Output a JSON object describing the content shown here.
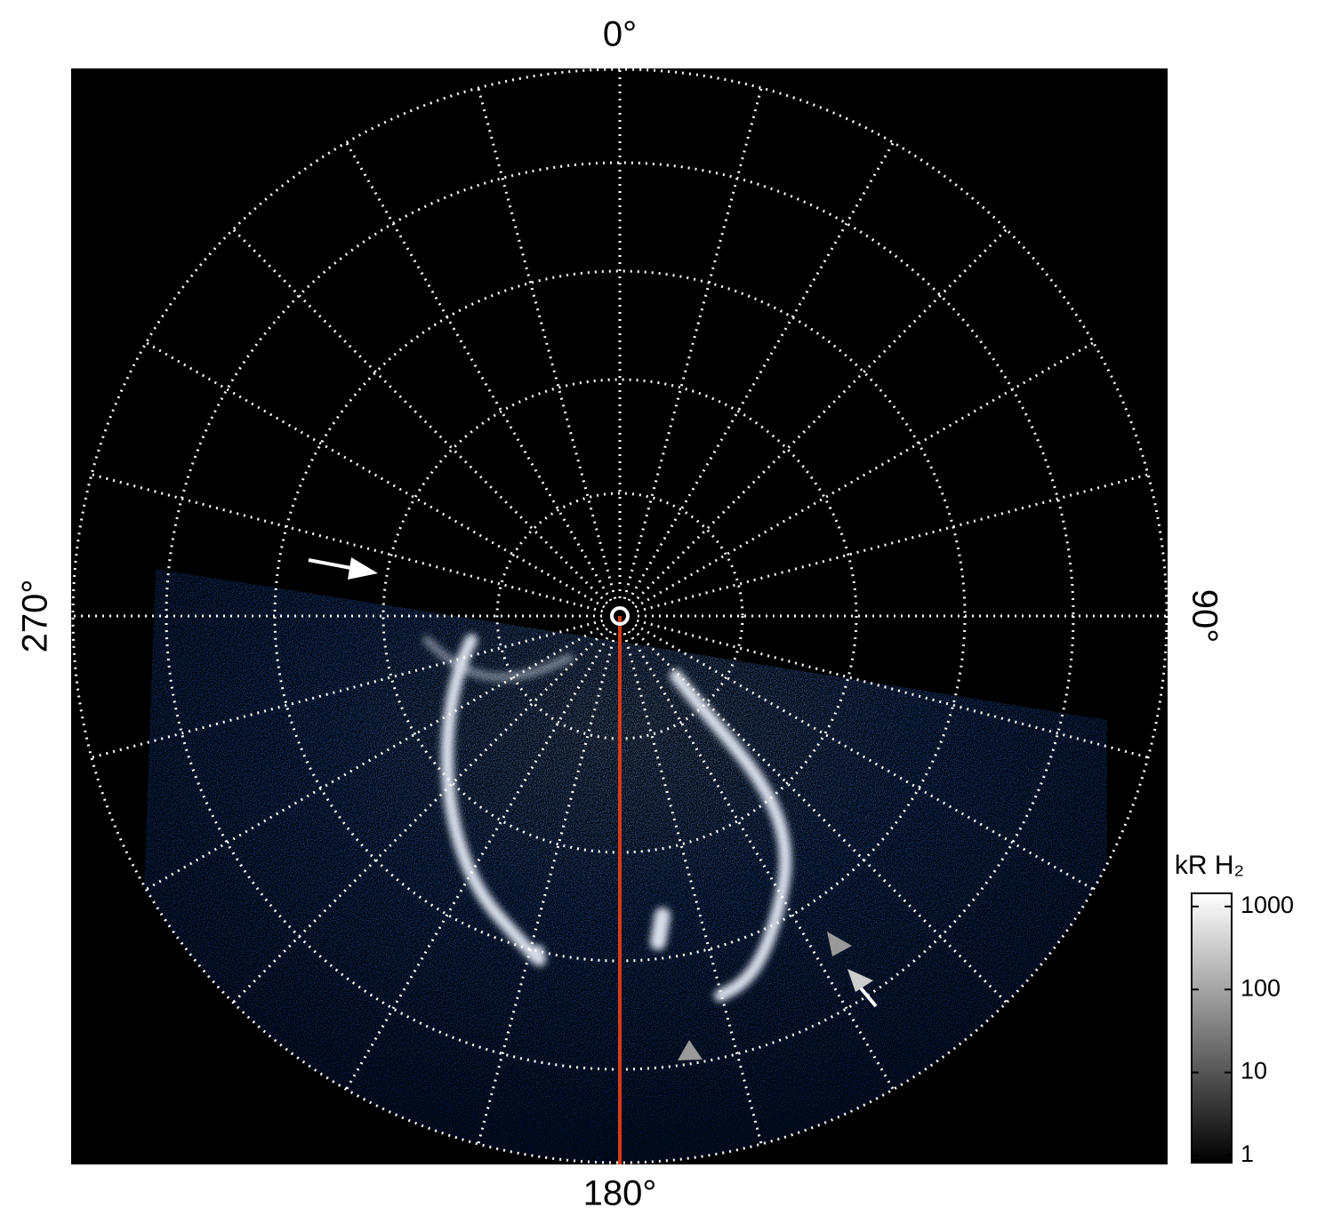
{
  "chart_data": {
    "type": "polar-image",
    "angle_ticks": [
      {
        "value": 0,
        "label": "0°"
      },
      {
        "value": 90,
        "label": "90°"
      },
      {
        "value": 180,
        "label": "180°"
      },
      {
        "value": 270,
        "label": "270°"
      }
    ],
    "colorbar": {
      "title": "kR H₂",
      "log": true,
      "ylim": [
        0.82,
        1440
      ],
      "yticks": [
        1,
        10,
        100,
        1000
      ]
    }
  }
}
